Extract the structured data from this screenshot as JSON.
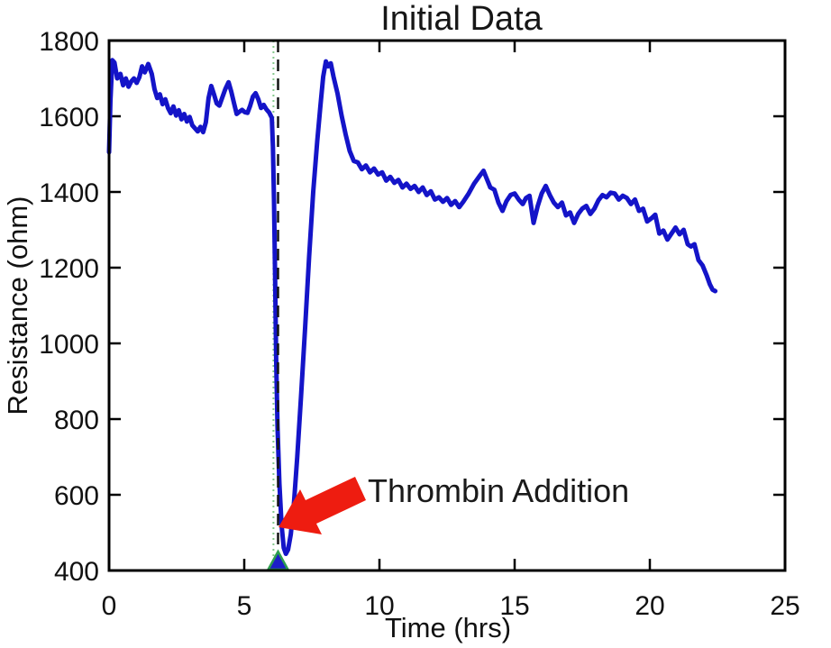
{
  "figure": {
    "background": "#ffffff"
  },
  "chart_data": {
    "type": "line",
    "title": "Initial Data",
    "xlabel": "Time (hrs)",
    "ylabel": "Resistance (ohm)",
    "xlim": [
      0,
      25
    ],
    "ylim": [
      400,
      1800
    ],
    "x_ticks": [
      0,
      5,
      10,
      15,
      20,
      25
    ],
    "y_ticks": [
      400,
      600,
      800,
      1000,
      1200,
      1400,
      1600,
      1800
    ],
    "grid": false,
    "legend": "none",
    "frame_color": "#000000",
    "series": [
      {
        "name": "resistance",
        "color": "#1414c8",
        "line_width": 5,
        "points": [
          [
            0.0,
            1505
          ],
          [
            0.05,
            1640
          ],
          [
            0.12,
            1748
          ],
          [
            0.2,
            1742
          ],
          [
            0.3,
            1700
          ],
          [
            0.42,
            1712
          ],
          [
            0.52,
            1682
          ],
          [
            0.62,
            1700
          ],
          [
            0.72,
            1678
          ],
          [
            0.82,
            1692
          ],
          [
            0.92,
            1700
          ],
          [
            1.02,
            1688
          ],
          [
            1.12,
            1703
          ],
          [
            1.22,
            1732
          ],
          [
            1.32,
            1716
          ],
          [
            1.45,
            1738
          ],
          [
            1.58,
            1712
          ],
          [
            1.68,
            1672
          ],
          [
            1.78,
            1648
          ],
          [
            1.88,
            1658
          ],
          [
            1.98,
            1632
          ],
          [
            2.08,
            1645
          ],
          [
            2.18,
            1622
          ],
          [
            2.28,
            1608
          ],
          [
            2.38,
            1626
          ],
          [
            2.48,
            1602
          ],
          [
            2.58,
            1616
          ],
          [
            2.68,
            1592
          ],
          [
            2.78,
            1606
          ],
          [
            2.88,
            1586
          ],
          [
            2.98,
            1598
          ],
          [
            3.08,
            1576
          ],
          [
            3.18,
            1568
          ],
          [
            3.28,
            1560
          ],
          [
            3.38,
            1572
          ],
          [
            3.48,
            1558
          ],
          [
            3.58,
            1584
          ],
          [
            3.68,
            1648
          ],
          [
            3.78,
            1680
          ],
          [
            3.88,
            1658
          ],
          [
            3.98,
            1634
          ],
          [
            4.08,
            1628
          ],
          [
            4.18,
            1648
          ],
          [
            4.3,
            1672
          ],
          [
            4.42,
            1690
          ],
          [
            4.52,
            1665
          ],
          [
            4.62,
            1635
          ],
          [
            4.72,
            1606
          ],
          [
            4.82,
            1612
          ],
          [
            4.92,
            1617
          ],
          [
            5.02,
            1611
          ],
          [
            5.12,
            1609
          ],
          [
            5.22,
            1628
          ],
          [
            5.32,
            1652
          ],
          [
            5.42,
            1661
          ],
          [
            5.52,
            1645
          ],
          [
            5.62,
            1622
          ],
          [
            5.72,
            1630
          ],
          [
            5.82,
            1618
          ],
          [
            5.92,
            1610
          ],
          [
            6.02,
            1596
          ],
          [
            6.06,
            1520
          ],
          [
            6.1,
            1380
          ],
          [
            6.14,
            1180
          ],
          [
            6.18,
            960
          ],
          [
            6.23,
            780
          ],
          [
            6.3,
            630
          ],
          [
            6.38,
            520
          ],
          [
            6.46,
            460
          ],
          [
            6.54,
            444
          ],
          [
            6.62,
            455
          ],
          [
            6.72,
            495
          ],
          [
            6.84,
            580
          ],
          [
            6.96,
            700
          ],
          [
            7.1,
            860
          ],
          [
            7.25,
            1040
          ],
          [
            7.4,
            1230
          ],
          [
            7.55,
            1400
          ],
          [
            7.7,
            1535
          ],
          [
            7.82,
            1630
          ],
          [
            7.92,
            1705
          ],
          [
            8.02,
            1745
          ],
          [
            8.1,
            1732
          ],
          [
            8.2,
            1740
          ],
          [
            8.3,
            1705
          ],
          [
            8.45,
            1660
          ],
          [
            8.6,
            1602
          ],
          [
            8.75,
            1552
          ],
          [
            8.9,
            1508
          ],
          [
            9.05,
            1482
          ],
          [
            9.2,
            1478
          ],
          [
            9.35,
            1460
          ],
          [
            9.5,
            1470
          ],
          [
            9.65,
            1452
          ],
          [
            9.8,
            1462
          ],
          [
            9.95,
            1446
          ],
          [
            10.1,
            1452
          ],
          [
            10.25,
            1430
          ],
          [
            10.4,
            1440
          ],
          [
            10.55,
            1424
          ],
          [
            10.7,
            1432
          ],
          [
            10.85,
            1412
          ],
          [
            11.0,
            1422
          ],
          [
            11.15,
            1408
          ],
          [
            11.3,
            1416
          ],
          [
            11.45,
            1400
          ],
          [
            11.6,
            1412
          ],
          [
            11.75,
            1392
          ],
          [
            11.9,
            1402
          ],
          [
            12.05,
            1380
          ],
          [
            12.2,
            1386
          ],
          [
            12.35,
            1374
          ],
          [
            12.5,
            1384
          ],
          [
            12.65,
            1366
          ],
          [
            12.8,
            1376
          ],
          [
            12.95,
            1360
          ],
          [
            13.1,
            1374
          ],
          [
            13.3,
            1396
          ],
          [
            13.5,
            1422
          ],
          [
            13.7,
            1442
          ],
          [
            13.85,
            1456
          ],
          [
            13.95,
            1438
          ],
          [
            14.1,
            1412
          ],
          [
            14.25,
            1406
          ],
          [
            14.4,
            1372
          ],
          [
            14.55,
            1350
          ],
          [
            14.7,
            1376
          ],
          [
            14.85,
            1392
          ],
          [
            15.0,
            1396
          ],
          [
            15.15,
            1380
          ],
          [
            15.3,
            1368
          ],
          [
            15.42,
            1384
          ],
          [
            15.55,
            1390
          ],
          [
            15.7,
            1318
          ],
          [
            15.85,
            1362
          ],
          [
            16.0,
            1396
          ],
          [
            16.15,
            1416
          ],
          [
            16.3,
            1392
          ],
          [
            16.45,
            1372
          ],
          [
            16.6,
            1360
          ],
          [
            16.75,
            1372
          ],
          [
            16.9,
            1338
          ],
          [
            17.05,
            1346
          ],
          [
            17.2,
            1318
          ],
          [
            17.35,
            1342
          ],
          [
            17.5,
            1356
          ],
          [
            17.65,
            1363
          ],
          [
            17.8,
            1342
          ],
          [
            17.95,
            1356
          ],
          [
            18.1,
            1378
          ],
          [
            18.25,
            1392
          ],
          [
            18.4,
            1386
          ],
          [
            18.55,
            1398
          ],
          [
            18.7,
            1396
          ],
          [
            18.85,
            1380
          ],
          [
            19.0,
            1390
          ],
          [
            19.15,
            1384
          ],
          [
            19.3,
            1368
          ],
          [
            19.45,
            1380
          ],
          [
            19.6,
            1350
          ],
          [
            19.75,
            1356
          ],
          [
            19.9,
            1322
          ],
          [
            20.05,
            1330
          ],
          [
            20.2,
            1340
          ],
          [
            20.35,
            1290
          ],
          [
            20.5,
            1298
          ],
          [
            20.65,
            1274
          ],
          [
            20.8,
            1290
          ],
          [
            20.95,
            1306
          ],
          [
            21.1,
            1288
          ],
          [
            21.25,
            1300
          ],
          [
            21.4,
            1262
          ],
          [
            21.52,
            1256
          ],
          [
            21.65,
            1262
          ],
          [
            21.8,
            1220
          ],
          [
            21.95,
            1206
          ],
          [
            22.1,
            1180
          ],
          [
            22.22,
            1156
          ],
          [
            22.32,
            1142
          ],
          [
            22.42,
            1138
          ]
        ]
      }
    ],
    "event_markers": {
      "green_dotted_line": {
        "x": 6.08,
        "color": "#85c98c",
        "style": "dotted"
      },
      "black_dashed_line": {
        "x": 6.25,
        "color": "#141414",
        "style": "dashed"
      },
      "triangle_marker": {
        "x": 6.25,
        "y": 400,
        "fill": "#1d1dc9",
        "edge_color": "#2e9e4f"
      }
    },
    "annotation": {
      "text": "Thrombin Addition",
      "arrow_color": "#ee1c10",
      "arrow_tip": [
        6.27,
        515
      ],
      "text_color": "#1a1a1a"
    }
  }
}
